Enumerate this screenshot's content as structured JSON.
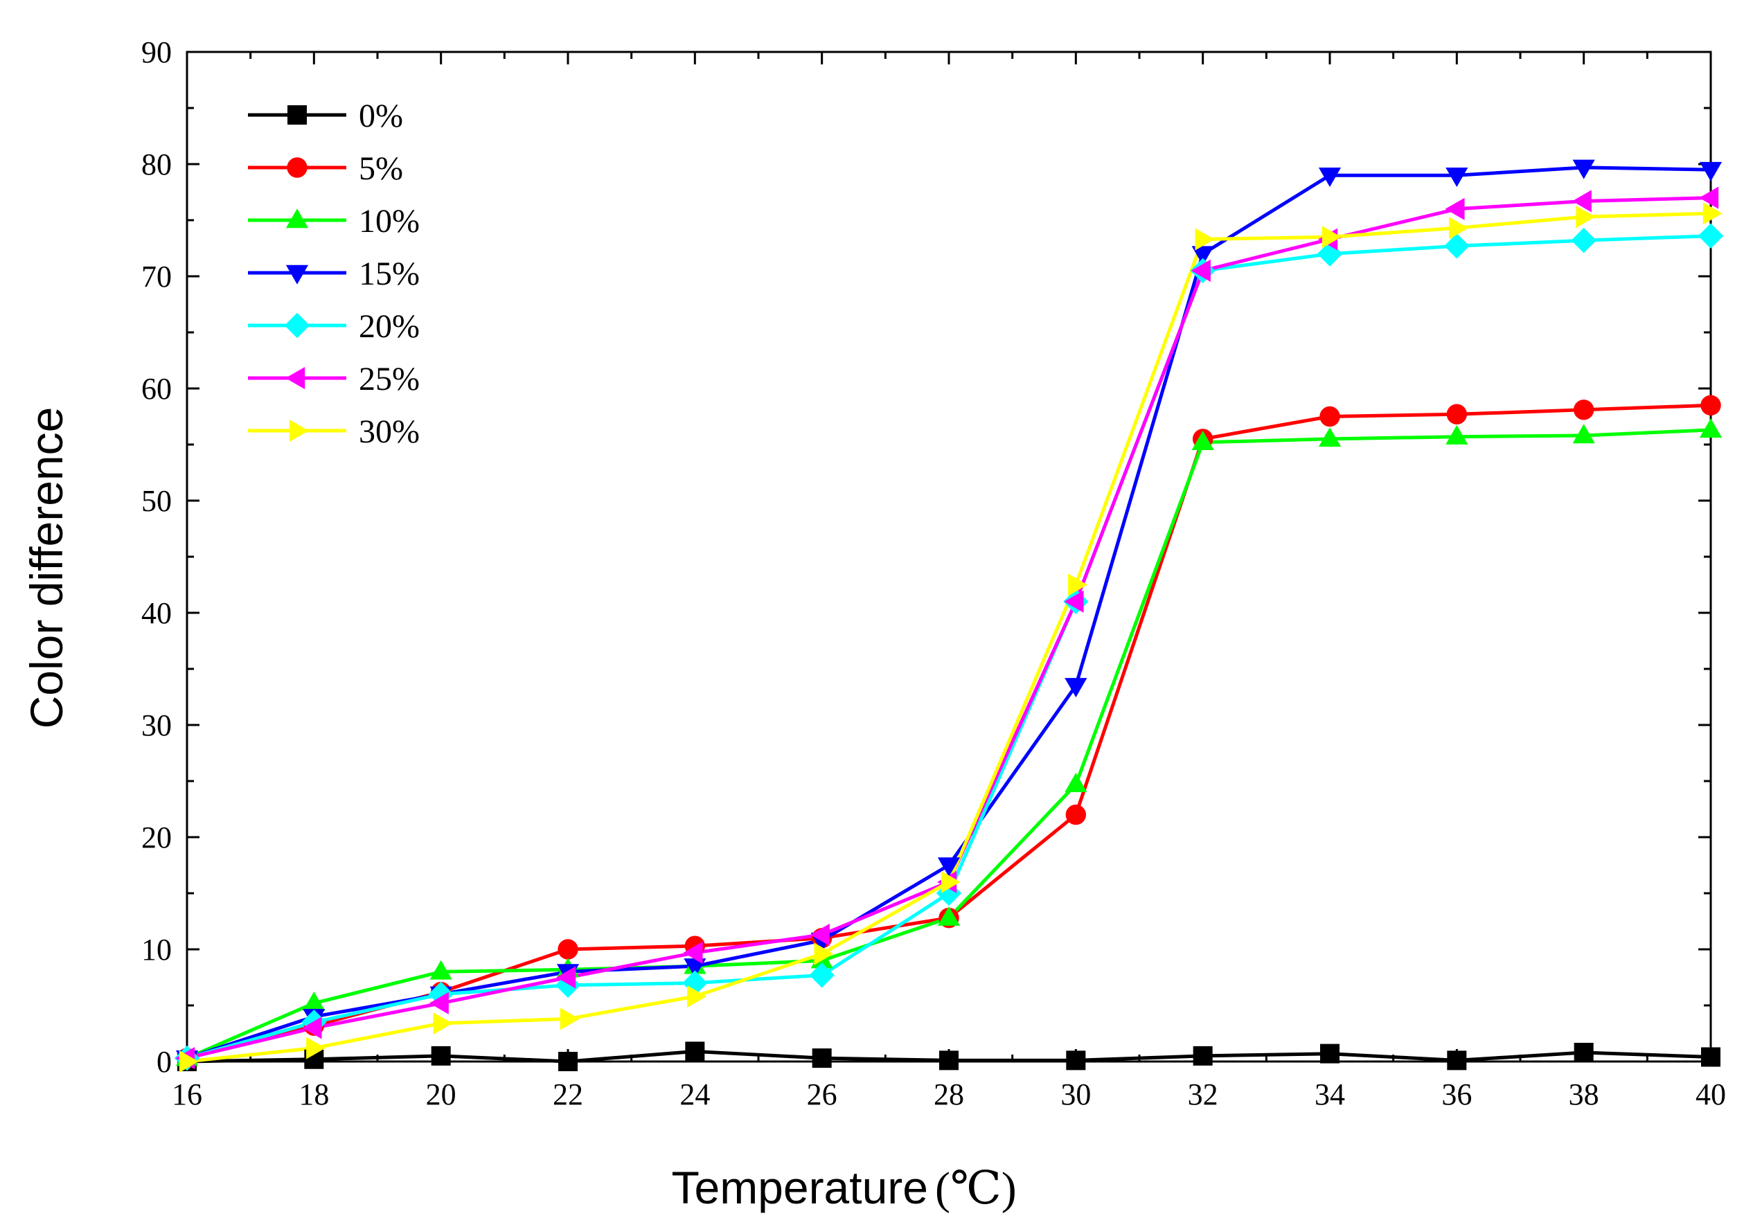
{
  "chart_data": {
    "type": "line",
    "title": "",
    "xlabel": "Temperature",
    "xlabel_unit": "(℃)",
    "ylabel": "Color difference",
    "xlim": [
      16,
      40
    ],
    "ylim": [
      0,
      90
    ],
    "x_ticks": [
      16,
      18,
      20,
      22,
      24,
      26,
      28,
      30,
      32,
      34,
      36,
      38,
      40
    ],
    "y_ticks": [
      0,
      10,
      20,
      30,
      40,
      50,
      60,
      70,
      80,
      90
    ],
    "grid": false,
    "legend_position": "top-left",
    "x": [
      16,
      18,
      20,
      22,
      24,
      26,
      28,
      30,
      32,
      34,
      36,
      38,
      40
    ],
    "series": [
      {
        "name": "0%",
        "color": "#000000",
        "marker": "square",
        "values": [
          0.0,
          0.2,
          0.5,
          0.0,
          0.9,
          0.3,
          0.1,
          0.1,
          0.5,
          0.7,
          0.1,
          0.8,
          0.4
        ]
      },
      {
        "name": "5%",
        "color": "#ff0000",
        "marker": "circle",
        "values": [
          0.3,
          3.2,
          6.2,
          10.0,
          10.3,
          11.0,
          12.8,
          22.0,
          55.5,
          57.5,
          57.7,
          58.1,
          58.5
        ]
      },
      {
        "name": "10%",
        "color": "#00ff00",
        "marker": "triangle-up",
        "values": [
          0.3,
          5.2,
          8.0,
          8.2,
          8.5,
          9.0,
          12.8,
          24.7,
          55.2,
          55.5,
          55.7,
          55.8,
          56.3
        ]
      },
      {
        "name": "15%",
        "color": "#0000ff",
        "marker": "triangle-down",
        "values": [
          0.3,
          4.0,
          6.0,
          8.0,
          8.5,
          10.8,
          17.5,
          33.5,
          72.0,
          79.0,
          79.0,
          79.7,
          79.5
        ]
      },
      {
        "name": "20%",
        "color": "#00ffff",
        "marker": "diamond",
        "values": [
          0.3,
          3.5,
          6.0,
          6.8,
          7.0,
          7.7,
          15.0,
          41.0,
          70.5,
          72.0,
          72.7,
          73.2,
          73.6
        ]
      },
      {
        "name": "25%",
        "color": "#ff00ff",
        "marker": "triangle-left",
        "values": [
          0.3,
          3.0,
          5.2,
          7.5,
          9.7,
          11.3,
          16.0,
          41.0,
          70.5,
          73.3,
          76.0,
          76.7,
          77.0
        ]
      },
      {
        "name": "30%",
        "color": "#ffff00",
        "marker": "triangle-right",
        "values": [
          0.0,
          1.2,
          3.4,
          3.8,
          5.8,
          9.6,
          16.0,
          42.5,
          73.3,
          73.5,
          74.3,
          75.3,
          75.6
        ]
      }
    ]
  }
}
